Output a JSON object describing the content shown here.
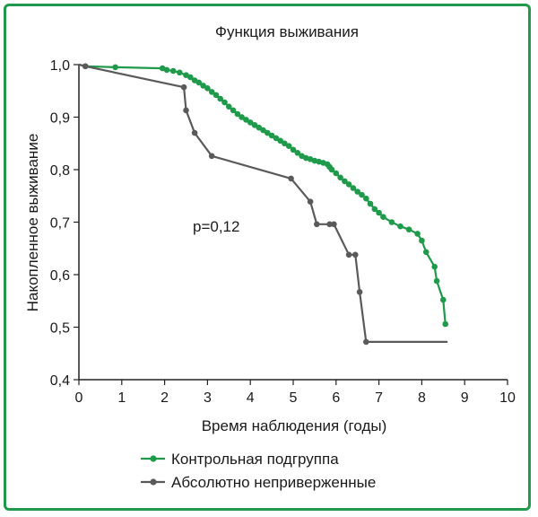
{
  "chart_data": {
    "type": "line",
    "title": "Функция выживания",
    "xlabel": "Время наблюдения (годы)",
    "ylabel": "Накопленное выживание",
    "xlim": [
      0,
      10
    ],
    "ylim": [
      0.4,
      1.0
    ],
    "x_ticks": [
      0,
      1,
      2,
      3,
      4,
      5,
      6,
      7,
      8,
      9,
      10
    ],
    "x_tick_labels": [
      "0",
      "1",
      "2",
      "3",
      "4",
      "5",
      "6",
      "7",
      "8",
      "9",
      "10"
    ],
    "y_ticks": [
      0.4,
      0.5,
      0.6,
      0.7,
      0.8,
      0.9,
      1.0
    ],
    "y_tick_labels": [
      "0,4",
      "0,5",
      "0,6",
      "0,7",
      "0,8",
      "0,9",
      "1,0"
    ],
    "grid": false,
    "annotation": "p=0,12",
    "legend_position": "bottom",
    "series": [
      {
        "name": "Контрольная подгруппа",
        "color": "#1e9a4a",
        "x": [
          0,
          0.15,
          0.85,
          1.95,
          2.05,
          2.2,
          2.35,
          2.5,
          2.6,
          2.7,
          2.8,
          2.9,
          3.0,
          3.1,
          3.2,
          3.3,
          3.4,
          3.5,
          3.6,
          3.7,
          3.8,
          3.9,
          4.0,
          4.1,
          4.2,
          4.3,
          4.4,
          4.5,
          4.6,
          4.7,
          4.8,
          4.9,
          5.0,
          5.1,
          5.2,
          5.3,
          5.4,
          5.5,
          5.6,
          5.7,
          5.8,
          5.85,
          5.9,
          6.0,
          6.1,
          6.2,
          6.3,
          6.4,
          6.5,
          6.6,
          6.7,
          6.8,
          6.9,
          7.0,
          7.1,
          7.3,
          7.5,
          7.7,
          7.9,
          8.0,
          8.1,
          8.3,
          8.35,
          8.5,
          8.55
        ],
        "y": [
          1.0,
          0.997,
          0.995,
          0.993,
          0.99,
          0.988,
          0.985,
          0.98,
          0.976,
          0.97,
          0.966,
          0.96,
          0.955,
          0.948,
          0.942,
          0.935,
          0.928,
          0.92,
          0.913,
          0.906,
          0.9,
          0.895,
          0.89,
          0.885,
          0.88,
          0.875,
          0.87,
          0.865,
          0.86,
          0.855,
          0.85,
          0.845,
          0.838,
          0.832,
          0.826,
          0.822,
          0.82,
          0.817,
          0.815,
          0.813,
          0.81,
          0.805,
          0.8,
          0.793,
          0.785,
          0.778,
          0.772,
          0.765,
          0.758,
          0.752,
          0.745,
          0.735,
          0.725,
          0.718,
          0.71,
          0.7,
          0.692,
          0.686,
          0.678,
          0.665,
          0.643,
          0.615,
          0.588,
          0.552,
          0.506
        ]
      },
      {
        "name": "Абсолютно неприверженные",
        "color": "#5a5a5a",
        "x": [
          0,
          0.15,
          2.45,
          2.5,
          2.7,
          3.1,
          4.95,
          5.4,
          5.55,
          5.85,
          5.95,
          6.3,
          6.45,
          6.55,
          6.7,
          8.6
        ],
        "y": [
          1.0,
          0.997,
          0.957,
          0.913,
          0.87,
          0.826,
          0.783,
          0.739,
          0.696,
          0.696,
          0.696,
          0.638,
          0.638,
          0.567,
          0.472,
          0.472
        ],
        "marker_x": [
          0.15,
          2.45,
          2.5,
          2.7,
          3.1,
          4.95,
          5.4,
          5.55,
          5.85,
          5.95,
          6.3,
          6.45,
          6.55,
          6.7
        ],
        "marker_y": [
          0.997,
          0.957,
          0.913,
          0.87,
          0.826,
          0.783,
          0.739,
          0.696,
          0.696,
          0.696,
          0.638,
          0.638,
          0.567,
          0.472
        ]
      }
    ]
  }
}
